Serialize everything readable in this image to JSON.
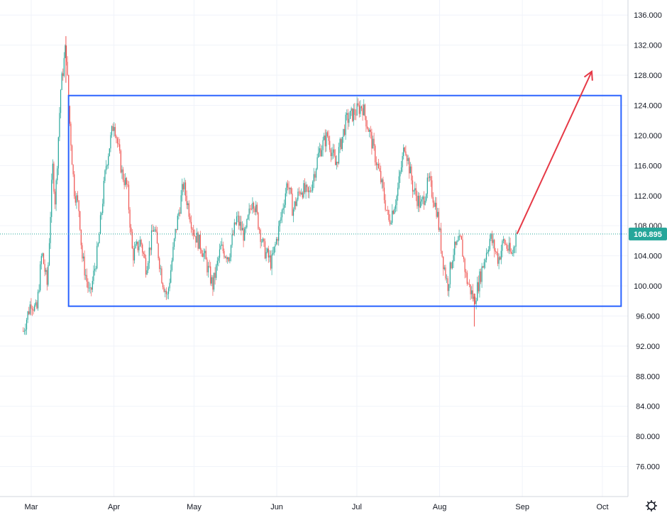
{
  "chart_data": {
    "type": "candlestick",
    "ylim": [
      72.0,
      138.0
    ],
    "y_ticks": [
      "76.000",
      "80.000",
      "84.000",
      "88.000",
      "92.000",
      "96.000",
      "100.000",
      "104.000",
      "108.000",
      "112.000",
      "116.000",
      "120.000",
      "124.000",
      "128.000",
      "132.000",
      "136.000"
    ],
    "x_ticks": [
      "Mar",
      "Apr",
      "May",
      "Jun",
      "Jul",
      "Aug",
      "Sep",
      "Oct"
    ],
    "grid": true,
    "last_price": "106.895",
    "colors": {
      "up": "#26a69a",
      "down": "#ef5350",
      "wick": "#7a7a7a",
      "box": "#2962ff",
      "arrow": "#e63946",
      "price_tag": "#26a69a",
      "grid": "#f0f3fa"
    },
    "price_path": [
      [
        "2022-02-26",
        94.0
      ],
      [
        "2022-03-01",
        98.0
      ],
      [
        "2022-03-03",
        96.5
      ],
      [
        "2022-03-05",
        104.5
      ],
      [
        "2022-03-07",
        100.0
      ],
      [
        "2022-03-09",
        116.0
      ],
      [
        "2022-03-10",
        111.0
      ],
      [
        "2022-03-12",
        126.0
      ],
      [
        "2022-03-14",
        132.0
      ],
      [
        "2022-03-15",
        124.0
      ],
      [
        "2022-03-17",
        113.0
      ],
      [
        "2022-03-19",
        110.0
      ],
      [
        "2022-03-20",
        104.0
      ],
      [
        "2022-03-23",
        98.5
      ],
      [
        "2022-03-26",
        105.0
      ],
      [
        "2022-03-29",
        116.0
      ],
      [
        "2022-04-01",
        122.0
      ],
      [
        "2022-04-04",
        115.0
      ],
      [
        "2022-04-06",
        113.0
      ],
      [
        "2022-04-08",
        104.0
      ],
      [
        "2022-04-11",
        106.0
      ],
      [
        "2022-04-13",
        102.5
      ],
      [
        "2022-04-16",
        108.0
      ],
      [
        "2022-04-19",
        101.0
      ],
      [
        "2022-04-21",
        98.5
      ],
      [
        "2022-04-24",
        107.0
      ],
      [
        "2022-04-27",
        113.5
      ],
      [
        "2022-05-01",
        107.0
      ],
      [
        "2022-05-04",
        105.0
      ],
      [
        "2022-05-08",
        100.0
      ],
      [
        "2022-05-11",
        105.0
      ],
      [
        "2022-05-14",
        104.0
      ],
      [
        "2022-05-17",
        109.0
      ],
      [
        "2022-05-20",
        106.5
      ],
      [
        "2022-05-23",
        112.0
      ],
      [
        "2022-05-27",
        105.0
      ],
      [
        "2022-05-30",
        103.0
      ],
      [
        "2022-06-02",
        108.0
      ],
      [
        "2022-06-05",
        114.0
      ],
      [
        "2022-06-07",
        110.0
      ],
      [
        "2022-06-10",
        113.0
      ],
      [
        "2022-06-13",
        112.0
      ],
      [
        "2022-06-17",
        118.0
      ],
      [
        "2022-06-20",
        120.0
      ],
      [
        "2022-06-23",
        116.0
      ],
      [
        "2022-06-27",
        122.0
      ],
      [
        "2022-06-30",
        123.0
      ],
      [
        "2022-07-03",
        124.0
      ],
      [
        "2022-07-06",
        120.0
      ],
      [
        "2022-07-10",
        114.0
      ],
      [
        "2022-07-13",
        108.5
      ],
      [
        "2022-07-16",
        112.0
      ],
      [
        "2022-07-19",
        119.0
      ],
      [
        "2022-07-22",
        113.0
      ],
      [
        "2022-07-25",
        110.5
      ],
      [
        "2022-07-28",
        114.0
      ],
      [
        "2022-07-31",
        110.0
      ],
      [
        "2022-08-02",
        104.0
      ],
      [
        "2022-08-04",
        100.0
      ],
      [
        "2022-08-06",
        104.5
      ],
      [
        "2022-08-09",
        106.0
      ],
      [
        "2022-08-11",
        101.0
      ],
      [
        "2022-08-14",
        98.0
      ],
      [
        "2022-08-17",
        102.5
      ],
      [
        "2022-08-20",
        106.5
      ],
      [
        "2022-08-23",
        103.5
      ],
      [
        "2022-08-25",
        106.0
      ],
      [
        "2022-08-28",
        104.0
      ],
      [
        "2022-08-30",
        106.895
      ]
    ],
    "annotations": {
      "range_box": {
        "from": "2022-03-15",
        "to": "2022-10-08",
        "top": 125.3,
        "bottom": 97.3
      },
      "arrow": {
        "from": [
          "2022-08-30",
          106.9
        ],
        "to": [
          "2022-09-27",
          128.5
        ]
      }
    }
  },
  "toolbar": {
    "settings_icon": "gear-icon"
  }
}
